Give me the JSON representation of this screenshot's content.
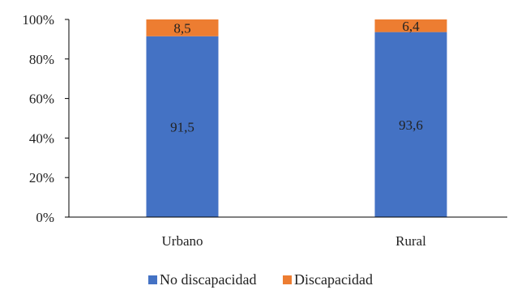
{
  "chart_data": {
    "type": "bar",
    "stacked": true,
    "percent_stacked": true,
    "categories": [
      "Urbano",
      "Rural"
    ],
    "series": [
      {
        "name": "No discapacidad",
        "values": [
          91.5,
          93.6
        ],
        "color": "#4472C4",
        "labels": [
          "91,5",
          "93,6"
        ]
      },
      {
        "name": "Discapacidad",
        "values": [
          8.5,
          6.4
        ],
        "color": "#ED7D31",
        "labels": [
          "8,5",
          "6,4"
        ]
      }
    ],
    "ylim": [
      0,
      100
    ],
    "yticks": [
      0,
      20,
      40,
      60,
      80,
      100
    ],
    "ytick_labels": [
      "0%",
      "20%",
      "40%",
      "60%",
      "80%",
      "100%"
    ],
    "grid": false,
    "legend_position": "bottom",
    "title": "",
    "xlabel": "",
    "ylabel": ""
  }
}
